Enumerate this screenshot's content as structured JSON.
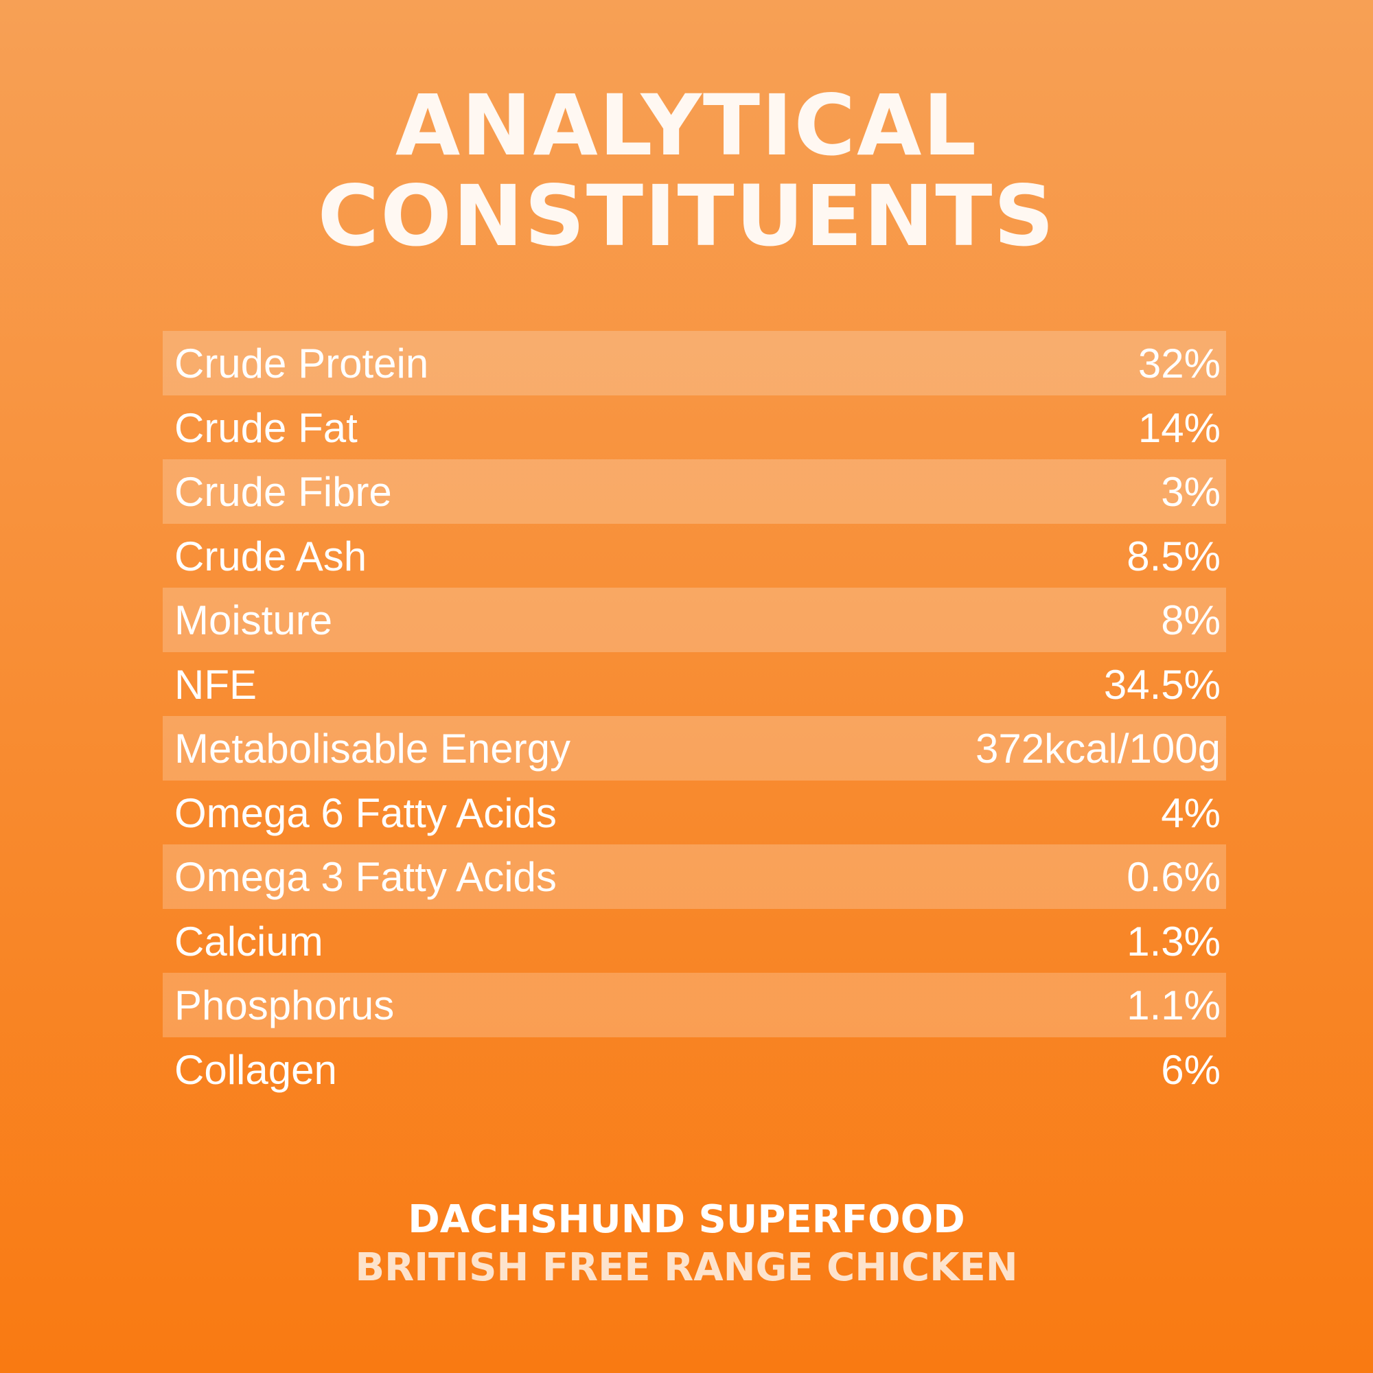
{
  "header": {
    "title_lines": [
      "ANALYTICAL",
      "CONSTITUENTS"
    ]
  },
  "table": {
    "rows": [
      [
        "Crude Protein",
        "32%"
      ],
      [
        "Crude Fat",
        "14%"
      ],
      [
        "Crude Fibre",
        "3%"
      ],
      [
        "Crude Ash",
        "8.5%"
      ],
      [
        "Moisture",
        "8%"
      ],
      [
        "NFE",
        "34.5%"
      ],
      [
        "Metabolisable Energy",
        "372kcal/100g"
      ],
      [
        "Omega 6 Fatty Acids",
        "4%"
      ],
      [
        "Omega 3 Fatty Acids",
        "0.6%"
      ],
      [
        "Calcium",
        "1.3%"
      ],
      [
        "Phosphorus",
        "1.1%"
      ],
      [
        "Collagen",
        "6%"
      ]
    ]
  },
  "footer": {
    "product": "DACHSHUND SUPERFOOD",
    "variety": "BRITISH FREE RANGE CHICKEN"
  }
}
